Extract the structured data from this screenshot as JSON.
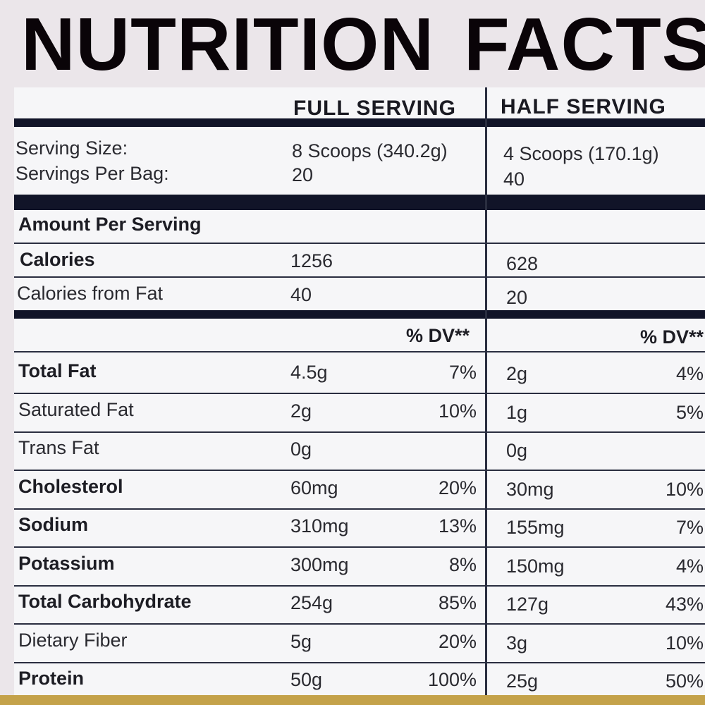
{
  "title": {
    "word1": "NUTRITION",
    "word2": "FACTS"
  },
  "columns": {
    "full": "FULL SERVING",
    "half": "HALF SERVING"
  },
  "serving": {
    "size_label": "Serving Size:",
    "per_bag_label": "Servings Per Bag:",
    "full_size": "8 Scoops (340.2g)",
    "half_size": "4 Scoops (170.1g)",
    "full_per_bag": "20",
    "half_per_bag": "40"
  },
  "amount_per_serving": "Amount Per Serving",
  "calories": {
    "label": "Calories",
    "full": "1256",
    "half": "628"
  },
  "calories_fat": {
    "label": "Calories from Fat",
    "full": "40",
    "half": "20"
  },
  "dv_header": "% DV**",
  "nutrients": [
    {
      "label": "Total Fat",
      "full": "4.5g",
      "full_dv": "7%",
      "half": "2g",
      "half_dv": "4%"
    },
    {
      "label": "Saturated Fat",
      "full": "2g",
      "full_dv": "10%",
      "half": "1g",
      "half_dv": "5%"
    },
    {
      "label": "Trans Fat",
      "full": "0g",
      "full_dv": "",
      "half": "0g",
      "half_dv": ""
    },
    {
      "label": "Cholesterol",
      "full": "60mg",
      "full_dv": "20%",
      "half": "30mg",
      "half_dv": "10%"
    },
    {
      "label": "Sodium",
      "full": "310mg",
      "full_dv": "13%",
      "half": "155mg",
      "half_dv": "7%"
    },
    {
      "label": "Potassium",
      "full": "300mg",
      "full_dv": "8%",
      "half": "150mg",
      "half_dv": "4%"
    },
    {
      "label": "Total Carbohydrate",
      "full": "254g",
      "full_dv": "85%",
      "half": "127g",
      "half_dv": "43%"
    },
    {
      "label": "Dietary Fiber",
      "full": "5g",
      "full_dv": "20%",
      "half": "3g",
      "half_dv": "10%"
    },
    {
      "label": "Protein",
      "full": "50g",
      "full_dv": "100%",
      "half": "25g",
      "half_dv": "50%"
    }
  ]
}
